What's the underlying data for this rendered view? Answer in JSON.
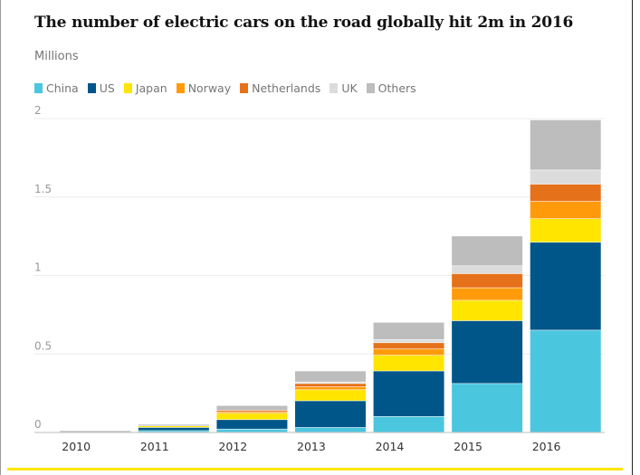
{
  "title": "The number of electric cars on the road globally hit 2m in 2016",
  "unit_label": "Millions",
  "colors": {
    "China": "#4bc6df",
    "US": "#005689",
    "Japan": "#ffe500",
    "Norway": "#ff9b0b",
    "Netherlands": "#e6711b",
    "UK": "#dcdcdc",
    "Others": "#bdbdbd"
  },
  "chart_data": {
    "type": "bar",
    "stacked": true,
    "categories": [
      "2010",
      "2011",
      "2012",
      "2013",
      "2014",
      "2015",
      "2016"
    ],
    "series": [
      {
        "name": "China",
        "values": [
          0.0,
          0.01,
          0.02,
          0.03,
          0.1,
          0.31,
          0.65
        ]
      },
      {
        "name": "US",
        "values": [
          0.0,
          0.02,
          0.06,
          0.17,
          0.29,
          0.4,
          0.56
        ]
      },
      {
        "name": "Japan",
        "values": [
          0.0,
          0.01,
          0.04,
          0.07,
          0.1,
          0.13,
          0.15
        ]
      },
      {
        "name": "Norway",
        "values": [
          0.0,
          0.0,
          0.01,
          0.02,
          0.04,
          0.08,
          0.11
        ]
      },
      {
        "name": "Netherlands",
        "values": [
          0.0,
          0.0,
          0.01,
          0.02,
          0.04,
          0.09,
          0.11
        ]
      },
      {
        "name": "UK",
        "values": [
          0.0,
          0.0,
          0.0,
          0.01,
          0.02,
          0.05,
          0.09
        ]
      },
      {
        "name": "Others",
        "values": [
          0.01,
          0.01,
          0.03,
          0.07,
          0.11,
          0.19,
          0.32
        ]
      }
    ],
    "yticks": [
      "0",
      "0.5",
      "1",
      "1.5",
      "2"
    ],
    "ylim": [
      0,
      2
    ],
    "grid": true,
    "legend": "top-left"
  }
}
